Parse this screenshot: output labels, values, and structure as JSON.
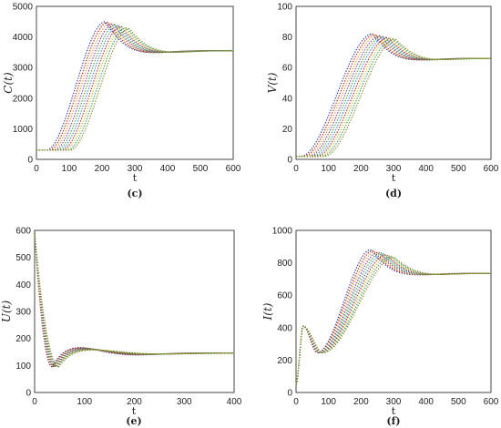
{
  "colors": {
    "series": [
      "#1f3fa8",
      "#c02020",
      "#d8a01a",
      "#8a2aa0",
      "#4aa030",
      "#2090c0",
      "#b01848",
      "#e0c010",
      "#2a9a7a",
      "#8a8a18"
    ],
    "frame": "#333333",
    "grid": "#d6d6d6"
  },
  "chart_data": [
    {
      "type": "line",
      "caption": "(c)",
      "xlabel": "t",
      "ylabel": "C(t)",
      "xlim": [
        0,
        600
      ],
      "ylim": [
        0,
        5000
      ],
      "xticks": [
        0,
        100,
        200,
        300,
        400,
        500,
        600
      ],
      "yticks": [
        0,
        1000,
        2000,
        3000,
        4000,
        5000
      ],
      "grid": true,
      "series_count": 10,
      "shape": {
        "kind": "growth",
        "x0": 0,
        "y0": 300,
        "xs": 30,
        "dx": 8,
        "w": 150,
        "peak": 4500,
        "peak_step": -25,
        "peak_x0": 210,
        "peak_dx": 8,
        "osc": 900,
        "tau": 60,
        "omega": 0.016,
        "final": 3550,
        "x_end": 600
      }
    },
    {
      "type": "line",
      "caption": "(d)",
      "xlabel": "t",
      "ylabel": "V(t)",
      "xlim": [
        0,
        600
      ],
      "ylim": [
        0,
        100
      ],
      "xticks": [
        0,
        100,
        200,
        300,
        400,
        500,
        600
      ],
      "yticks": [
        0,
        20,
        40,
        60,
        80,
        100
      ],
      "grid": true,
      "series_count": 10,
      "shape": {
        "kind": "growth",
        "x0": 0,
        "y0": 2,
        "xs": 15,
        "dx": 8,
        "w": 200,
        "peak": 82,
        "peak_step": -0.4,
        "peak_x0": 235,
        "peak_dx": 8,
        "osc": 13,
        "tau": 60,
        "omega": 0.016,
        "final": 66,
        "x_end": 600
      }
    },
    {
      "type": "line",
      "caption": "(e)",
      "xlabel": "t",
      "ylabel": "U(t)",
      "xlim": [
        0,
        400
      ],
      "ylim": [
        0,
        600
      ],
      "xticks": [
        0,
        100,
        200,
        300,
        400
      ],
      "yticks": [
        0,
        100,
        200,
        300,
        400,
        500,
        600
      ],
      "grid": true,
      "series_count": 10,
      "shape": {
        "kind": "decay",
        "y0": 590,
        "final": 145,
        "trough": 95,
        "trough_x0": 35,
        "trough_dx": 1.5,
        "amp2": 30,
        "amp_step": -1,
        "period0": 125,
        "period_dx": 4,
        "tau": 80,
        "x_end": 400
      }
    },
    {
      "type": "line",
      "caption": "(f)",
      "xlabel": "t",
      "ylabel": "I(t)",
      "xlim": [
        0,
        600
      ],
      "ylim": [
        0,
        1000
      ],
      "xticks": [
        0,
        100,
        200,
        300,
        400,
        500,
        600
      ],
      "yticks": [
        0,
        200,
        400,
        600,
        800,
        1000
      ],
      "grid": true,
      "series_count": 10,
      "shape": {
        "kind": "dual",
        "y0": 50,
        "spike": 410,
        "spike_x": 22,
        "dip": 245,
        "dip_x0": 65,
        "dip_dx": 2,
        "w": 160,
        "peak": 880,
        "peak_step": -5,
        "peak_x0": 230,
        "peak_dx": 8,
        "osc": 180,
        "tau": 60,
        "omega": 0.016,
        "final": 735,
        "x_end": 600
      }
    }
  ]
}
